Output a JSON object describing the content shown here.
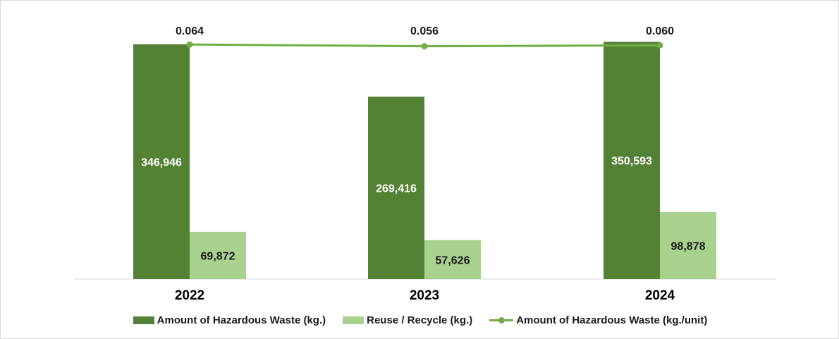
{
  "colors": {
    "dark_bar": "#548235",
    "light_bar": "#a9d18e",
    "line": "#70ad47",
    "axis": "#d9d9d9"
  },
  "chart_data": {
    "type": "bar",
    "categories": [
      "2022",
      "2023",
      "2024"
    ],
    "series": [
      {
        "name": "Amount of Hazardous Waste (kg.)",
        "kind": "bar",
        "values": [
          346946,
          269416,
          350593
        ],
        "labels": [
          "346,946",
          "269,416",
          "350,593"
        ]
      },
      {
        "name": "Reuse / Recycle (kg.)",
        "kind": "bar",
        "values": [
          69872,
          57626,
          98878
        ],
        "labels": [
          "69,872",
          "57,626",
          "98,878"
        ]
      },
      {
        "name": "Amount of Hazardous Waste (kg./unit)",
        "kind": "line",
        "values": [
          0.064,
          0.056,
          0.06
        ],
        "labels": [
          "0.064",
          "0.056",
          "0.060"
        ]
      }
    ],
    "ylim_bars": [
      0,
      380000
    ],
    "grid": false,
    "legend_position": "bottom"
  }
}
